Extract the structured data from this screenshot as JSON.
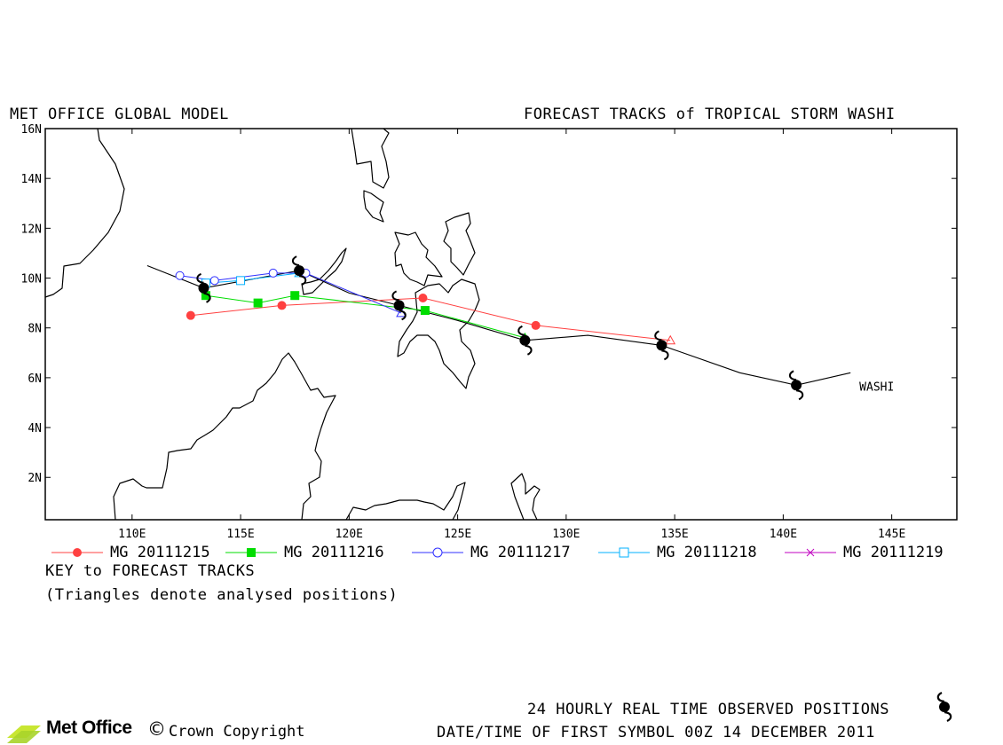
{
  "header": {
    "left_title": "MET OFFICE GLOBAL MODEL",
    "right_title": "FORECAST TRACKS of TROPICAL STORM WASHI"
  },
  "key": {
    "title": "KEY to FORECAST TRACKS",
    "note": "(Triangles denote analysed positions)"
  },
  "legend": [
    {
      "label": "MG 20111215",
      "color": "#ff4040",
      "marker": "filled-circle"
    },
    {
      "label": "MG 20111216",
      "color": "#00dd00",
      "marker": "filled-square"
    },
    {
      "label": "MG 20111217",
      "color": "#3030ff",
      "marker": "open-circle"
    },
    {
      "label": "MG 20111218",
      "color": "#00b0ff",
      "marker": "open-square"
    },
    {
      "label": "MG 20111219",
      "color": "#c000c0",
      "marker": "cross"
    }
  ],
  "footer": {
    "observed_line": "24 HOURLY REAL TIME OBSERVED POSITIONS",
    "date_line": "DATE/TIME OF FIRST SYMBOL 00Z 14 DECEMBER 2011",
    "logo_text": "Met Office",
    "copyright": "Crown Copyright",
    "copyright_symbol": "©"
  },
  "chart_data": {
    "type": "scatter",
    "title": "FORECAST TRACKS of TROPICAL STORM WASHI",
    "xlim": [
      106,
      148
    ],
    "ylim": [
      0.3,
      16
    ],
    "x_ticks": [
      110,
      115,
      120,
      125,
      130,
      135,
      140,
      145
    ],
    "x_tick_labels": [
      "110E",
      "115E",
      "120E",
      "125E",
      "130E",
      "135E",
      "140E",
      "145E"
    ],
    "y_ticks": [
      2,
      4,
      6,
      8,
      10,
      12,
      14,
      16
    ],
    "y_tick_labels": [
      "2N",
      "4N",
      "6N",
      "8N",
      "10N",
      "12N",
      "14N",
      "16N"
    ],
    "storm_label": "WASHI",
    "observed_track": {
      "name": "observed",
      "color": "#000000",
      "points": [
        [
          143.1,
          6.2
        ],
        [
          140.6,
          5.7
        ],
        [
          138.0,
          6.2
        ],
        [
          134.4,
          7.3
        ],
        [
          131.0,
          7.7
        ],
        [
          128.1,
          7.5
        ],
        [
          125.0,
          8.3
        ],
        [
          122.3,
          8.9
        ],
        [
          120.0,
          9.4
        ],
        [
          117.7,
          10.3
        ],
        [
          113.3,
          9.6
        ],
        [
          110.7,
          10.5
        ]
      ],
      "symbols": [
        [
          140.6,
          5.7
        ],
        [
          134.4,
          7.3
        ],
        [
          128.1,
          7.5
        ],
        [
          122.3,
          8.9
        ],
        [
          117.7,
          10.3
        ],
        [
          113.3,
          9.6
        ]
      ]
    },
    "series": [
      {
        "name": "MG 20111215",
        "color": "#ff4040",
        "marker": "filled-circle",
        "analysed": [
          134.8,
          7.5
        ],
        "points": [
          [
            134.8,
            7.5
          ],
          [
            128.6,
            8.1
          ],
          [
            123.4,
            9.2
          ],
          [
            116.9,
            8.9
          ],
          [
            112.7,
            8.5
          ]
        ]
      },
      {
        "name": "MG 20111216",
        "color": "#00dd00",
        "marker": "filled-square",
        "analysed": [
          128.1,
          7.6
        ],
        "points": [
          [
            128.1,
            7.6
          ],
          [
            123.5,
            8.7
          ],
          [
            117.5,
            9.3
          ],
          [
            115.8,
            9.0
          ],
          [
            113.4,
            9.3
          ]
        ]
      },
      {
        "name": "MG 20111217",
        "color": "#3030ff",
        "marker": "open-circle",
        "analysed": [
          122.4,
          8.6
        ],
        "points": [
          [
            122.4,
            8.6
          ],
          [
            118.0,
            10.2
          ],
          [
            116.5,
            10.2
          ],
          [
            113.8,
            9.9
          ],
          [
            112.2,
            10.1
          ]
        ]
      },
      {
        "name": "MG 20111218",
        "color": "#00b0ff",
        "marker": "open-square",
        "analysed": [
          117.7,
          10.2
        ],
        "points": [
          [
            117.7,
            10.2
          ],
          [
            115.0,
            9.9
          ],
          [
            113.4,
            9.8
          ]
        ]
      }
    ]
  }
}
